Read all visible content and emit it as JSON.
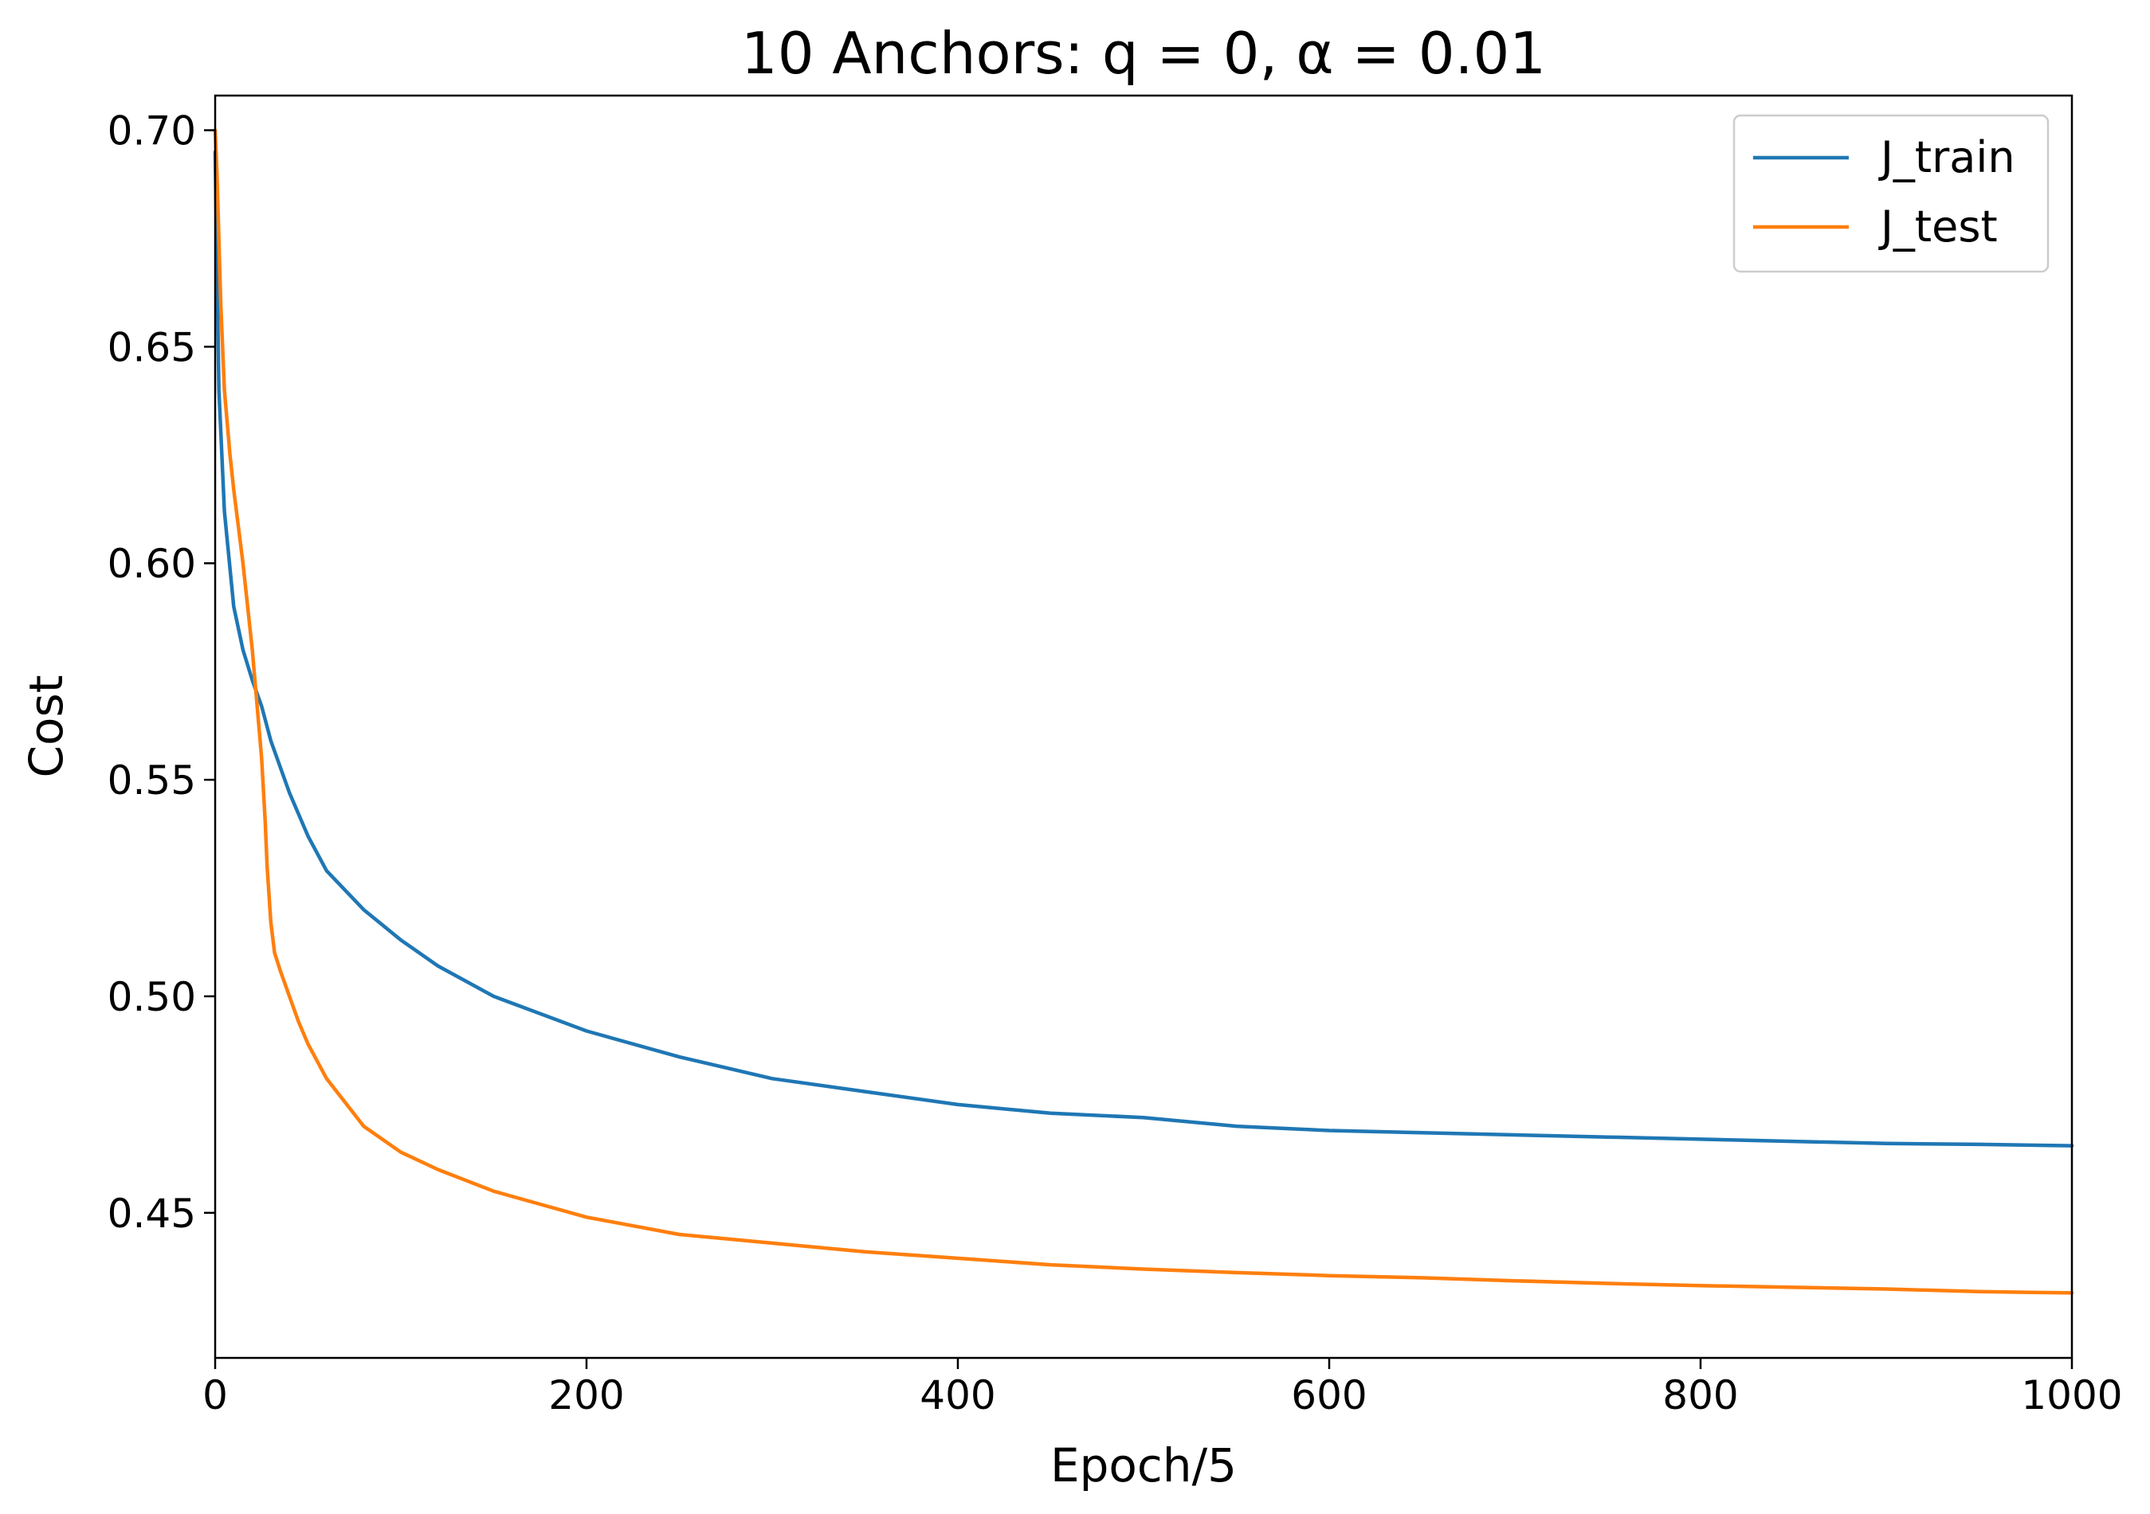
{
  "chart_data": {
    "type": "line",
    "title": "10 Anchors: q = 0, α = 0.01",
    "xlabel": "Epoch/5",
    "ylabel": "Cost",
    "xlim": [
      0,
      1000
    ],
    "ylim": [
      0.4165,
      0.708
    ],
    "xticks": [
      0,
      200,
      400,
      600,
      800,
      1000
    ],
    "xtick_labels": [
      "0",
      "200",
      "400",
      "600",
      "800",
      "1000"
    ],
    "yticks": [
      0.45,
      0.5,
      0.55,
      0.6,
      0.65,
      0.7
    ],
    "ytick_labels": [
      "0.45",
      "0.50",
      "0.55",
      "0.60",
      "0.65",
      "0.70"
    ],
    "grid": false,
    "legend_position": "top-right",
    "series": [
      {
        "name": "J_train",
        "color": "#1f77b4",
        "x": [
          0,
          2,
          5,
          10,
          15,
          20,
          25,
          30,
          40,
          50,
          60,
          80,
          100,
          120,
          150,
          200,
          250,
          300,
          350,
          400,
          450,
          500,
          550,
          600,
          650,
          700,
          750,
          800,
          850,
          900,
          950,
          1000
        ],
        "y": [
          0.695,
          0.64,
          0.612,
          0.59,
          0.58,
          0.573,
          0.567,
          0.559,
          0.547,
          0.537,
          0.529,
          0.52,
          0.513,
          0.507,
          0.5,
          0.492,
          0.486,
          0.481,
          0.478,
          0.475,
          0.473,
          0.472,
          0.47,
          0.469,
          0.4685,
          0.468,
          0.4675,
          0.467,
          0.4665,
          0.466,
          0.4658,
          0.4655
        ]
      },
      {
        "name": "J_test",
        "color": "#ff7f0e",
        "x": [
          0,
          1,
          3,
          5,
          8,
          10,
          15,
          20,
          22,
          25,
          27,
          28,
          30,
          32,
          35,
          40,
          45,
          50,
          60,
          80,
          100,
          120,
          150,
          200,
          250,
          300,
          350,
          400,
          450,
          500,
          550,
          600,
          650,
          700,
          750,
          800,
          850,
          900,
          950,
          1000
        ],
        "y": [
          0.7,
          0.69,
          0.66,
          0.64,
          0.625,
          0.617,
          0.6,
          0.58,
          0.57,
          0.555,
          0.54,
          0.53,
          0.517,
          0.51,
          0.506,
          0.5,
          0.494,
          0.489,
          0.481,
          0.47,
          0.464,
          0.46,
          0.455,
          0.449,
          0.445,
          0.443,
          0.441,
          0.4395,
          0.438,
          0.437,
          0.4362,
          0.4355,
          0.435,
          0.4343,
          0.4337,
          0.4332,
          0.4328,
          0.4324,
          0.4318,
          0.4315
        ]
      }
    ]
  }
}
